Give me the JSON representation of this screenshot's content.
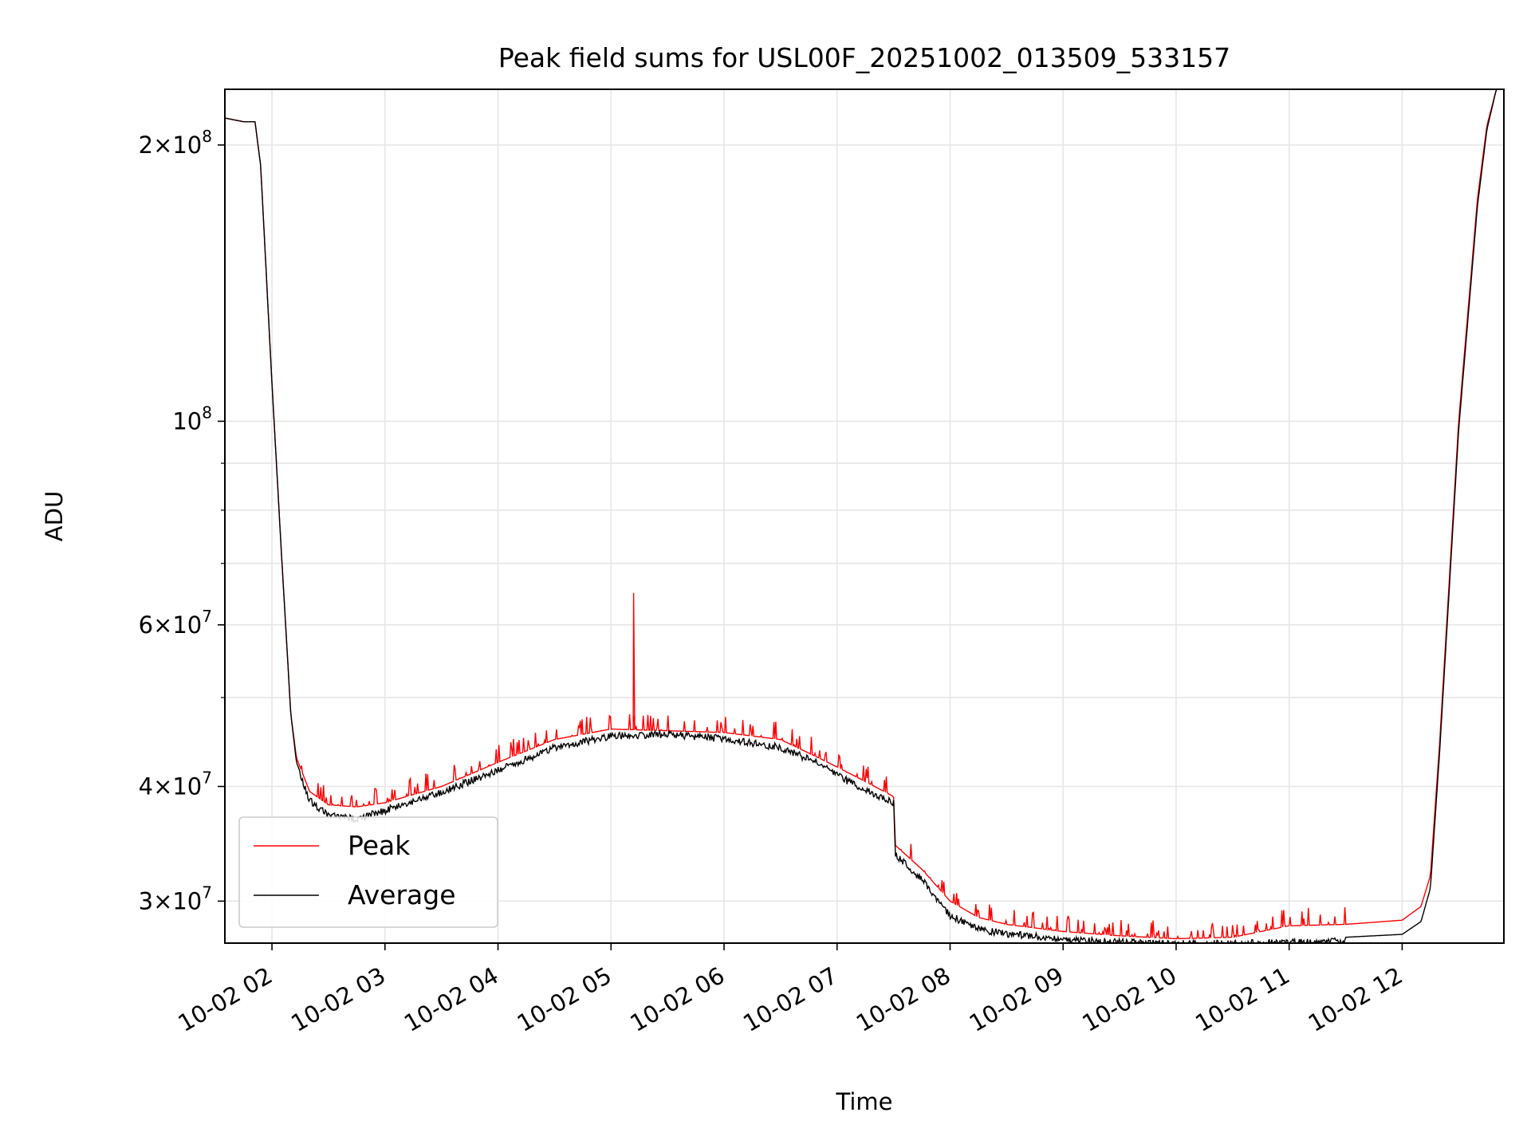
{
  "chart_data": {
    "type": "line",
    "title": "Peak field sums for USL00F_20251002_013509_533157",
    "xlabel": "Time",
    "ylabel": "ADU",
    "y_scale": "log",
    "ylim": [
      27000000,
      230000000
    ],
    "xlim": [
      "2025-10-02 01:35",
      "2025-10-02 12:54"
    ],
    "grid": true,
    "legend_position": "lower-left",
    "x_ticks": [
      "10-02 02",
      "10-02 03",
      "10-02 04",
      "10-02 05",
      "10-02 06",
      "10-02 07",
      "10-02 08",
      "10-02 09",
      "10-02 10",
      "10-02 11",
      "10-02 12"
    ],
    "x_tick_times": [
      "2025-10-02 02:00",
      "2025-10-02 03:00",
      "2025-10-02 04:00",
      "2025-10-02 05:00",
      "2025-10-02 06:00",
      "2025-10-02 07:00",
      "2025-10-02 08:00",
      "2025-10-02 09:00",
      "2025-10-02 10:00",
      "2025-10-02 11:00",
      "2025-10-02 12:00"
    ],
    "y_ticks": [
      {
        "value": 200000000,
        "mant": "2",
        "exp": "8"
      },
      {
        "value": 100000000,
        "mant": "",
        "exp": "8"
      },
      {
        "value": 60000000,
        "mant": "6",
        "exp": "7"
      },
      {
        "value": 40000000,
        "mant": "4",
        "exp": "7"
      },
      {
        "value": 30000000,
        "mant": "3",
        "exp": "7"
      }
    ],
    "y_minor_ticks": [
      90000000,
      80000000,
      70000000,
      50000000
    ],
    "x": [
      "2025-10-02 01:35",
      "2025-10-02 01:45",
      "2025-10-02 01:51",
      "2025-10-02 01:54",
      "2025-10-02 02:00",
      "2025-10-02 02:05",
      "2025-10-02 02:10",
      "2025-10-02 02:13",
      "2025-10-02 02:20",
      "2025-10-02 02:30",
      "2025-10-02 02:45",
      "2025-10-02 03:00",
      "2025-10-02 03:30",
      "2025-10-02 04:00",
      "2025-10-02 04:30",
      "2025-10-02 05:00",
      "2025-10-02 05:30",
      "2025-10-02 06:00",
      "2025-10-02 06:30",
      "2025-10-02 06:50",
      "2025-10-02 07:00",
      "2025-10-02 07:15",
      "2025-10-02 07:30",
      "2025-10-02 07:31",
      "2025-10-02 07:45",
      "2025-10-02 08:00",
      "2025-10-02 08:15",
      "2025-10-02 08:30",
      "2025-10-02 09:00",
      "2025-10-02 09:30",
      "2025-10-02 10:00",
      "2025-10-02 10:30",
      "2025-10-02 11:00",
      "2025-10-02 11:30",
      "2025-10-02 12:00",
      "2025-10-02 12:10",
      "2025-10-02 12:15",
      "2025-10-02 12:20",
      "2025-10-02 12:30",
      "2025-10-02 12:40",
      "2025-10-02 12:45",
      "2025-10-02 12:50",
      "2025-10-02 12:54"
    ],
    "series": [
      {
        "name": "Peak",
        "color": "#ff0000",
        "values": [
          214000000,
          212000000,
          212000000,
          190000000,
          110000000,
          72000000,
          48000000,
          43000000,
          39500000,
          38200000,
          38000000,
          38400000,
          40000000,
          42500000,
          45000000,
          46200000,
          46000000,
          45800000,
          45000000,
          43000000,
          42000000,
          40500000,
          39000000,
          34500000,
          32500000,
          30000000,
          28800000,
          28300000,
          27800000,
          27500000,
          27300000,
          27400000,
          28200000,
          28300000,
          28600000,
          29600000,
          32000000,
          45000000,
          100000000,
          175000000,
          210000000,
          230000000,
          230000000
        ],
        "spikes": [
          {
            "x": "2025-10-02 05:12",
            "value": 65000000
          }
        ]
      },
      {
        "name": "Average",
        "color": "#000000",
        "values": [
          214000000,
          212000000,
          212000000,
          190000000,
          110000000,
          72000000,
          48000000,
          42500000,
          39000000,
          37500000,
          37200000,
          38000000,
          39800000,
          42000000,
          44500000,
          45800000,
          46000000,
          45500000,
          44500000,
          42800000,
          41500000,
          40000000,
          38800000,
          34000000,
          32000000,
          29200000,
          28200000,
          27900000,
          27500000,
          27300000,
          27200000,
          27200000,
          27300000,
          27400000,
          27600000,
          28500000,
          31000000,
          44000000,
          98000000,
          172000000,
          208000000,
          230000000,
          230000000
        ]
      }
    ]
  }
}
